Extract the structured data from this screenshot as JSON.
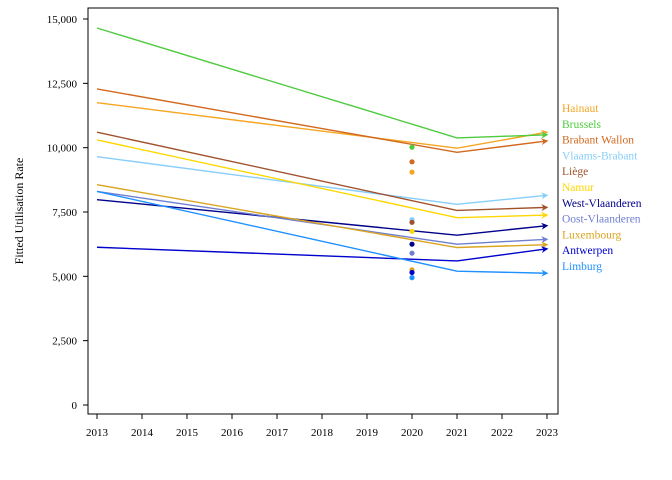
{
  "chart_data": {
    "type": "line",
    "title": "",
    "xlabel": "",
    "ylabel": "Fitted Utilisation Rate",
    "xlim": [
      2013,
      2023
    ],
    "ylim": [
      0,
      15000
    ],
    "x_ticks": [
      2013,
      2014,
      2015,
      2016,
      2017,
      2018,
      2019,
      2020,
      2021,
      2022,
      2023
    ],
    "x_tick_labels": [
      "2013",
      "2014",
      "2015",
      "2016",
      "2017",
      "2018",
      "2019",
      "2020",
      "2021",
      "2022",
      "2023"
    ],
    "y_ticks": [
      0,
      2500,
      5000,
      7500,
      10000,
      12500,
      15000
    ],
    "y_tick_labels": [
      "0",
      "2,500",
      "5,000",
      "7,500",
      "10,000",
      "12,500",
      "15,000"
    ],
    "grid": false,
    "legend_placement": "right",
    "x": [
      2013,
      2021,
      2023
    ],
    "series": [
      {
        "name": "Hainaut",
        "color": "#f5a623",
        "values": [
          11750,
          9980,
          10600
        ],
        "point_2020": 9050
      },
      {
        "name": "Brussels",
        "color": "#4ecb3e",
        "values": [
          14650,
          10380,
          10500
        ],
        "point_2020": 10020
      },
      {
        "name": "Brabant Wallon",
        "color": "#d2691e",
        "values": [
          12280,
          9820,
          10260
        ],
        "point_2020": 9450
      },
      {
        "name": "Vlaams-Brabant",
        "color": "#87cefa",
        "values": [
          9650,
          7800,
          8150
        ],
        "point_2020": 7200
      },
      {
        "name": "Liège",
        "color": "#a0522d",
        "values": [
          10600,
          7560,
          7680
        ],
        "point_2020": 7100
      },
      {
        "name": "Namur",
        "color": "#ffd700",
        "values": [
          10300,
          7280,
          7380
        ],
        "point_2020": 6750
      },
      {
        "name": "West-Vlaanderen",
        "color": "#00008b",
        "values": [
          7980,
          6600,
          6970
        ],
        "point_2020": 6250
      },
      {
        "name": "Oost-Vlaanderen",
        "color": "#6f7fd0",
        "values": [
          8300,
          6250,
          6440
        ],
        "point_2020": 5900
      },
      {
        "name": "Luxembourg",
        "color": "#daa520",
        "values": [
          8560,
          6120,
          6230
        ],
        "point_2020": 5250
      },
      {
        "name": "Antwerpen",
        "color": "#0000cd",
        "values": [
          6130,
          5600,
          6070
        ],
        "point_2020": 5150
      },
      {
        "name": "Limburg",
        "color": "#1e90ff",
        "values": [
          8300,
          5200,
          5120
        ],
        "point_2020": 4950
      }
    ]
  }
}
